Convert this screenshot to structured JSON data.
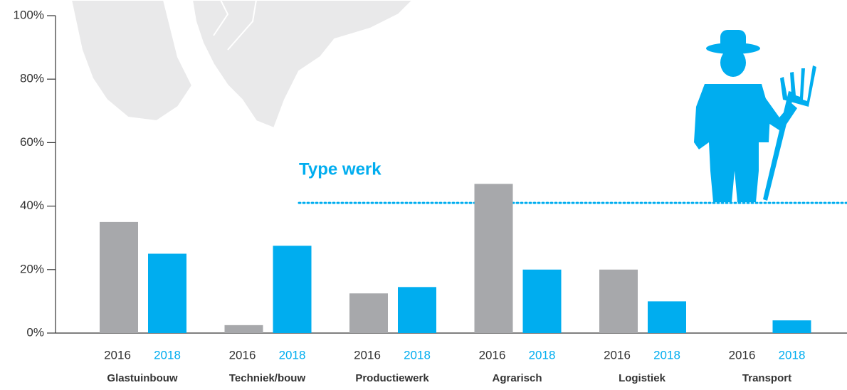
{
  "chart_data": {
    "type": "bar",
    "categories": [
      "Glastuinbouw",
      "Techniek/bouw",
      "Productiewerk",
      "Agrarisch",
      "Logistiek",
      "Transport"
    ],
    "series": [
      {
        "name": "2016",
        "color": "#a7a8ab",
        "values": [
          35,
          2.5,
          12.5,
          47,
          20,
          0
        ]
      },
      {
        "name": "2018",
        "color": "#00adef",
        "values": [
          25,
          27.5,
          14.5,
          20,
          10,
          4
        ]
      }
    ],
    "ylim": [
      0,
      100
    ],
    "yticks": [
      {
        "value": 0,
        "label": "0%"
      },
      {
        "value": 20,
        "label": "20%"
      },
      {
        "value": 40,
        "label": "40%"
      },
      {
        "value": 60,
        "label": "60%"
      },
      {
        "value": 80,
        "label": "80%"
      },
      {
        "value": 100,
        "label": "100%"
      }
    ],
    "reference_line": {
      "label": "Type werk",
      "value": 41,
      "color": "#00adef"
    }
  }
}
